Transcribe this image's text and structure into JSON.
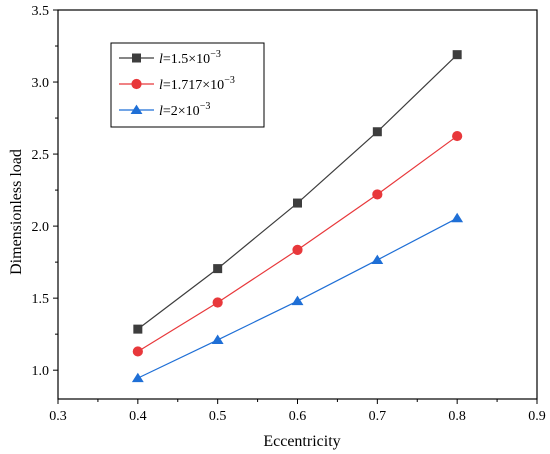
{
  "chart_data": {
    "type": "line",
    "xlabel": "Eccentricity",
    "ylabel": "Dimensionless load",
    "xlim": [
      0.3,
      0.9
    ],
    "ylim": [
      0.8,
      3.5
    ],
    "xticks": [
      0.3,
      0.4,
      0.5,
      0.6,
      0.7,
      0.8,
      0.9
    ],
    "xtick_labels": [
      "0.3",
      "0.4",
      "0.5",
      "0.6",
      "0.7",
      "0.8",
      "0.9"
    ],
    "yticks": [
      1.0,
      1.5,
      2.0,
      2.5,
      3.0,
      3.5
    ],
    "ytick_labels": [
      "1.0",
      "1.5",
      "2.0",
      "2.5",
      "3.0",
      "3.5"
    ],
    "grid": false,
    "legend_position": "top-left",
    "x": [
      0.4,
      0.5,
      0.6,
      0.7,
      0.8
    ],
    "series": [
      {
        "name": "l=1.5×10^-3",
        "label_var": "l",
        "label_eq": "=1.5×10",
        "label_exp": "−3",
        "color": "#3d3d3d",
        "marker": "square",
        "values": [
          1.285,
          1.705,
          2.16,
          2.655,
          3.19
        ]
      },
      {
        "name": "l=1.717×10^-3",
        "label_var": "l",
        "label_eq": "=1.717×10",
        "label_exp": "−3",
        "color": "#e8383b",
        "marker": "circle",
        "values": [
          1.13,
          1.47,
          1.835,
          2.22,
          2.625
        ]
      },
      {
        "name": "l=2×10^-3",
        "label_var": "l",
        "label_eq": "=2×10",
        "label_exp": "−3",
        "color": "#1f6fd6",
        "marker": "triangle",
        "values": [
          0.945,
          1.21,
          1.48,
          1.765,
          2.055
        ]
      }
    ]
  }
}
